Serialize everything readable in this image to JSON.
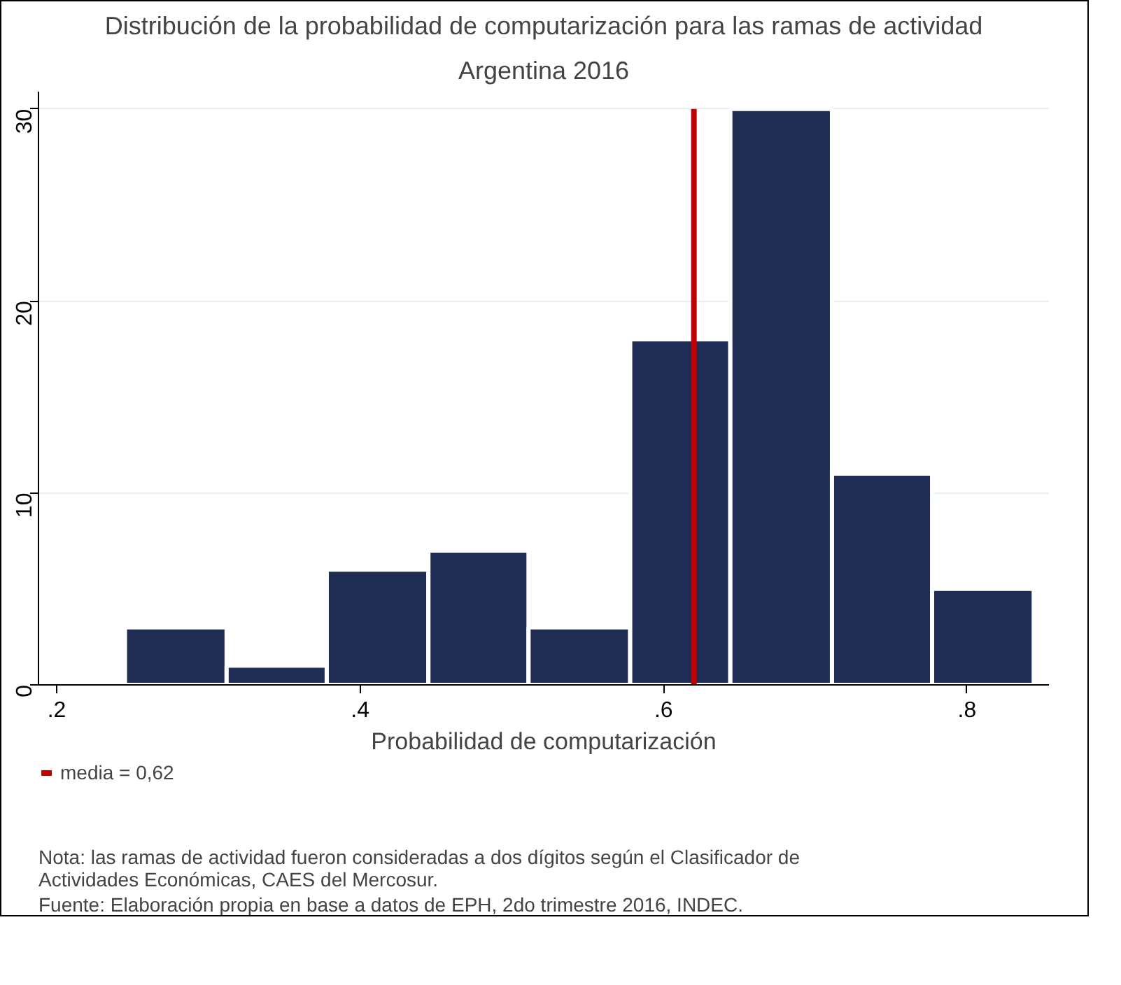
{
  "chart_data": {
    "type": "histogram",
    "title": "Distribución de la probabilidad de computarización para las ramas de actividad",
    "subtitle": "Argentina 2016",
    "xlabel": "Probabilidad de computarización",
    "bins": [
      0.245,
      0.312,
      0.378,
      0.445,
      0.511,
      0.578,
      0.644,
      0.711,
      0.777,
      0.844
    ],
    "values": [
      3,
      1,
      6,
      7,
      3,
      18,
      30,
      11,
      5
    ],
    "color": "#1f2d54",
    "xlim": [
      0.188,
      0.854
    ],
    "ylim": [
      0,
      30.9
    ],
    "xticks": [
      {
        "value": 0.2,
        "label": ".2"
      },
      {
        "value": 0.4,
        "label": ".4"
      },
      {
        "value": 0.6,
        "label": ".6"
      },
      {
        "value": 0.8,
        "label": ".8"
      }
    ],
    "yticks": [
      0,
      10,
      20,
      30
    ],
    "grid": "y",
    "ref_lines": [
      {
        "axis": "x",
        "value": 0.62,
        "label": "media = 0,62",
        "color": "#c10000",
        "line_style": "solid"
      }
    ],
    "legend": "bottom",
    "annotations": [
      "Nota: las ramas de actividad fueron consideradas a dos dígitos según el Clasificador de Actividades Económicas, CAES del Mercosur.",
      "Fuente: Elaboración propia en base a datos de EPH, 2do trimestre 2016, INDEC."
    ]
  }
}
